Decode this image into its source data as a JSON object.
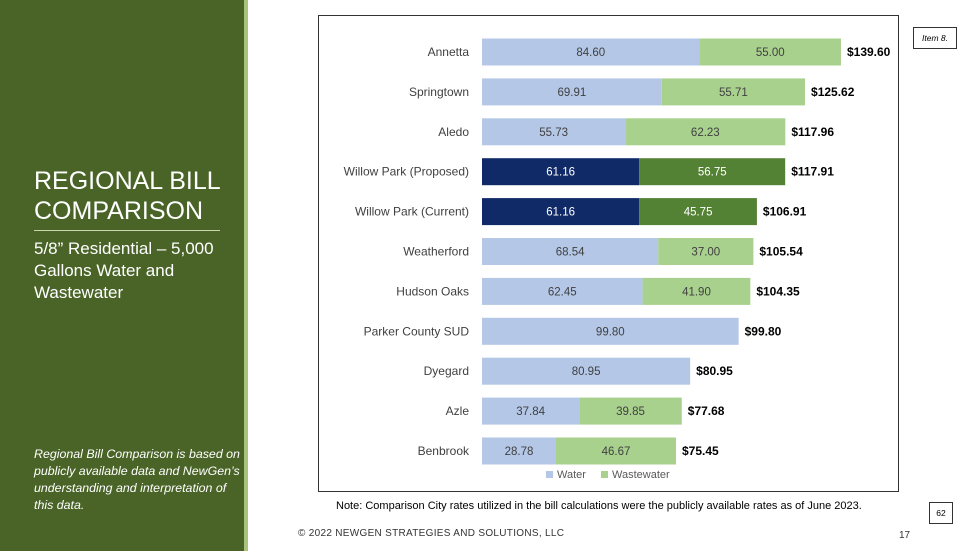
{
  "slide": {
    "title": "REGIONAL BILL COMPARISON",
    "subtitle": "5/8” Residential – 5,000 Gallons Water and Wastewater",
    "side_note": "Regional Bill Comparison is based on publicly available data and NewGen’s understanding and interpretation of this data.",
    "item_label": "Item 8.",
    "page_badge": "62",
    "note": "Note: Comparison City rates utilized in the bill calculations were the publicly available rates as of June 2023.",
    "footer": "© 2022 NEWGEN STRATEGIES AND SOLUTIONS, LLC",
    "slide_number": "17"
  },
  "chart_data": {
    "type": "bar",
    "orientation": "horizontal",
    "stacked": true,
    "categories": [
      "Annetta",
      "Springtown",
      "Aledo",
      "Willow Park (Proposed)",
      "Willow Park (Current)",
      "Weatherford",
      "Hudson Oaks",
      "Parker County SUD",
      "Dyegard",
      "Azle",
      "Benbrook"
    ],
    "series": [
      {
        "name": "Water",
        "values": [
          84.6,
          69.91,
          55.73,
          61.16,
          61.16,
          68.54,
          62.45,
          99.8,
          80.95,
          37.84,
          28.78
        ],
        "color": "#b4c7e7"
      },
      {
        "name": "Wastewater",
        "values": [
          55.0,
          55.71,
          62.23,
          56.75,
          45.75,
          37.0,
          41.9,
          0,
          0,
          39.85,
          46.67
        ],
        "color": "#a9d18e"
      }
    ],
    "totals": [
      "$139.60",
      "$125.62",
      "$117.96",
      "$117.91",
      "$106.91",
      "$105.54",
      "$104.35",
      "$99.80",
      "$80.95",
      "$77.68",
      "$75.45"
    ],
    "highlight_categories": [
      "Willow Park (Proposed)",
      "Willow Park (Current)"
    ],
    "highlight_colors": {
      "Water": "#0f2a66",
      "Wastewater": "#548235"
    },
    "xlim": [
      0,
      140
    ],
    "legend": "bottom",
    "grid": false
  }
}
